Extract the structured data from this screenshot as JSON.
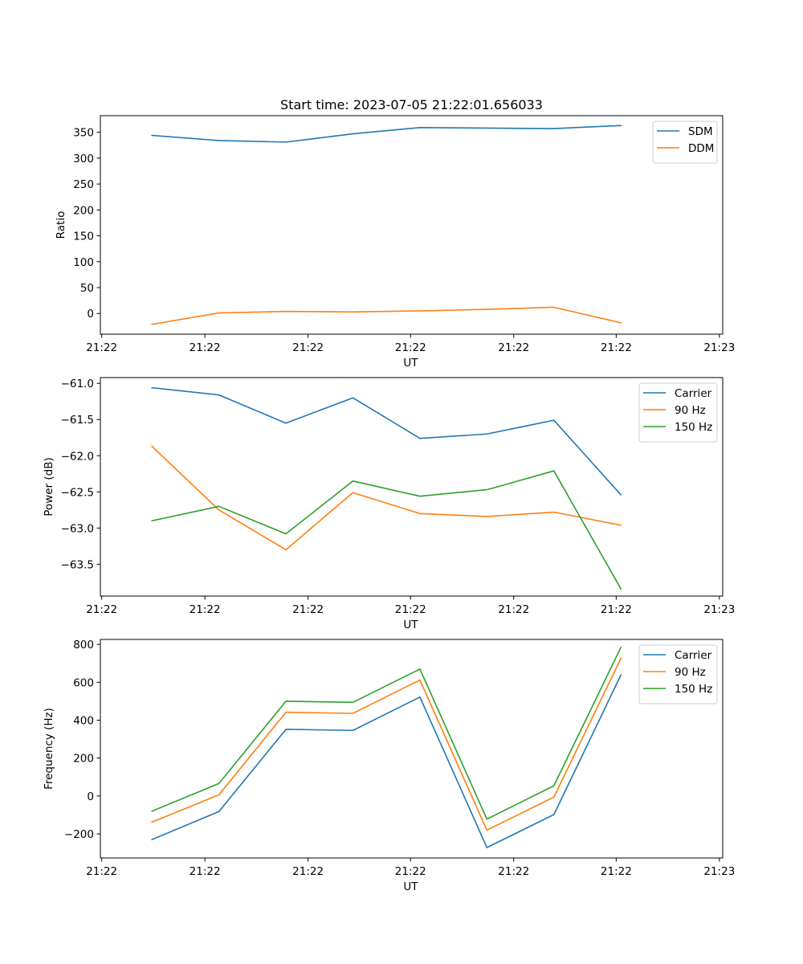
{
  "figure_title": "Start time: 2023-07-05 21:22:01.656033",
  "colors": {
    "blue": "#1f77b4",
    "orange": "#ff7f0e",
    "green": "#2ca02c"
  },
  "chart_data": [
    {
      "type": "line",
      "ylabel": "Ratio",
      "xlabel": "UT",
      "xlim": [
        -0.77,
        8.52
      ],
      "x": [
        0,
        1,
        2,
        3,
        4,
        5,
        6,
        7
      ],
      "xticks": [
        -0.75,
        0.79,
        2.33,
        3.86,
        5.4,
        6.93,
        8.47
      ],
      "xtick_labels": [
        "21:22",
        "21:22",
        "21:22",
        "21:22",
        "21:22",
        "21:22",
        "21:23"
      ],
      "ylim": [
        -40,
        382
      ],
      "yticks": [
        0,
        50,
        100,
        150,
        200,
        250,
        300,
        350
      ],
      "legend_position": "upper right",
      "series": [
        {
          "name": "SDM",
          "color": "#1f77b4",
          "values": [
            344,
            334,
            331,
            347,
            359,
            358,
            357,
            363
          ]
        },
        {
          "name": "DDM",
          "color": "#ff7f0e",
          "values": [
            -21,
            1,
            4,
            3,
            5,
            8,
            12,
            -18
          ]
        }
      ]
    },
    {
      "type": "line",
      "ylabel": "Power (dB)",
      "xlabel": "UT",
      "xlim": [
        -0.77,
        8.52
      ],
      "x": [
        0,
        1,
        2,
        3,
        4,
        5,
        6,
        7
      ],
      "xticks": [
        -0.75,
        0.79,
        2.33,
        3.86,
        5.4,
        6.93,
        8.47
      ],
      "xtick_labels": [
        "21:22",
        "21:22",
        "21:22",
        "21:22",
        "21:22",
        "21:22",
        "21:23"
      ],
      "ylim": [
        -63.94,
        -60.92
      ],
      "yticks": [
        -63.5,
        -63.0,
        -62.5,
        -62.0,
        -61.5,
        -61.0
      ],
      "ytick_labels": [
        "−63.5",
        "−63.0",
        "−62.5",
        "−62.0",
        "−61.5",
        "−61.0"
      ],
      "legend_position": "upper right",
      "series": [
        {
          "name": "Carrier",
          "color": "#1f77b4",
          "values": [
            -61.06,
            -61.16,
            -61.55,
            -61.2,
            -61.76,
            -61.7,
            -61.51,
            -62.54
          ]
        },
        {
          "name": "90 Hz",
          "color": "#ff7f0e",
          "values": [
            -61.87,
            -62.75,
            -63.3,
            -62.51,
            -62.8,
            -62.84,
            -62.78,
            -62.96
          ]
        },
        {
          "name": "150 Hz",
          "color": "#2ca02c",
          "values": [
            -62.9,
            -62.7,
            -63.08,
            -62.35,
            -62.56,
            -62.47,
            -62.21,
            -63.84
          ]
        }
      ]
    },
    {
      "type": "line",
      "ylabel": "Frequency (Hz)",
      "xlabel": "UT",
      "xlim": [
        -0.77,
        8.52
      ],
      "x": [
        0,
        1,
        2,
        3,
        4,
        5,
        6,
        7
      ],
      "xticks": [
        -0.75,
        0.79,
        2.33,
        3.86,
        5.4,
        6.93,
        8.47
      ],
      "xtick_labels": [
        "21:22",
        "21:22",
        "21:22",
        "21:22",
        "21:22",
        "21:22",
        "21:23"
      ],
      "ylim": [
        -327,
        826
      ],
      "yticks": [
        -200,
        0,
        200,
        400,
        600,
        800
      ],
      "ytick_labels": [
        "−200",
        "0",
        "200",
        "400",
        "600",
        "800"
      ],
      "legend_position": "upper right",
      "series": [
        {
          "name": "Carrier",
          "color": "#1f77b4",
          "values": [
            -230,
            -82,
            352,
            346,
            522,
            -272,
            -98,
            638
          ]
        },
        {
          "name": "90 Hz",
          "color": "#ff7f0e",
          "values": [
            -138,
            6,
            442,
            436,
            612,
            -180,
            -6,
            726
          ]
        },
        {
          "name": "150 Hz",
          "color": "#2ca02c",
          "values": [
            -80,
            66,
            500,
            494,
            670,
            -122,
            54,
            784
          ]
        }
      ]
    }
  ]
}
